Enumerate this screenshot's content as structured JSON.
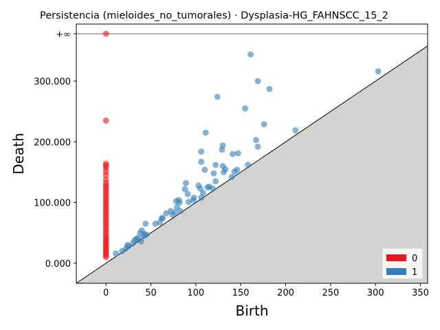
{
  "chart_data": {
    "type": "scatter",
    "title": "Persistencia (mieloides_no_tumorales) · Dysplasia-HG_FAHNSCC_15_2",
    "xlabel": "Birth",
    "ylabel": "Death",
    "xlim": [
      -33,
      358
    ],
    "ylim": [
      -33,
      394
    ],
    "x_ticks": [
      {
        "value": 0,
        "label": "0"
      },
      {
        "value": 50,
        "label": "50"
      },
      {
        "value": 100,
        "label": "100"
      },
      {
        "value": 150,
        "label": "150"
      },
      {
        "value": 200,
        "label": "200"
      },
      {
        "value": 250,
        "label": "250"
      },
      {
        "value": 300,
        "label": "300"
      },
      {
        "value": 350,
        "label": "350"
      }
    ],
    "y_ticks": [
      {
        "value": 0,
        "label": "0.000"
      },
      {
        "value": 100,
        "label": "100.000"
      },
      {
        "value": 200,
        "label": "200.000"
      },
      {
        "value": 300,
        "label": "300.000"
      }
    ],
    "infinity_line": {
      "value": 378,
      "label": "+∞"
    },
    "diagonal": true,
    "grid": false,
    "legend_position": "lower-right",
    "series": [
      {
        "name": "0",
        "color": "#e41a1c",
        "points": [
          [
            0,
            378
          ],
          [
            0,
            235
          ],
          [
            0,
            164
          ],
          [
            0,
            161
          ],
          [
            0,
            157
          ],
          [
            0,
            151
          ],
          [
            0,
            145
          ],
          [
            0,
            138
          ],
          [
            0,
            132
          ],
          [
            0,
            128
          ],
          [
            0,
            124
          ],
          [
            0,
            120
          ],
          [
            0,
            116
          ],
          [
            0,
            112
          ],
          [
            0,
            108
          ],
          [
            0,
            104
          ],
          [
            0,
            100
          ],
          [
            0,
            96
          ],
          [
            0,
            92
          ],
          [
            0,
            88
          ],
          [
            0,
            84
          ],
          [
            0,
            80
          ],
          [
            0,
            76
          ],
          [
            0,
            72
          ],
          [
            0,
            68
          ],
          [
            0,
            64
          ],
          [
            0,
            60
          ],
          [
            0,
            56
          ],
          [
            0,
            52
          ],
          [
            0,
            48
          ],
          [
            0,
            44
          ],
          [
            0,
            40
          ],
          [
            0,
            37
          ],
          [
            0,
            34
          ],
          [
            0,
            31
          ],
          [
            0,
            28
          ],
          [
            0,
            25
          ],
          [
            0,
            22
          ],
          [
            0,
            19
          ],
          [
            0,
            16
          ],
          [
            0,
            13
          ],
          [
            0,
            10
          ]
        ]
      },
      {
        "name": "1",
        "color": "#377eb8",
        "points": [
          [
            11,
            16
          ],
          [
            18,
            20
          ],
          [
            22,
            24
          ],
          [
            24,
            30
          ],
          [
            25,
            28
          ],
          [
            30,
            33
          ],
          [
            32,
            38
          ],
          [
            34,
            40
          ],
          [
            36,
            42
          ],
          [
            38,
            50
          ],
          [
            39,
            36
          ],
          [
            40,
            54
          ],
          [
            42,
            45
          ],
          [
            43,
            48
          ],
          [
            44,
            65
          ],
          [
            45,
            47
          ],
          [
            55,
            65
          ],
          [
            60,
            67
          ],
          [
            62,
            74
          ],
          [
            63,
            74
          ],
          [
            67,
            82
          ],
          [
            72,
            86
          ],
          [
            74,
            80
          ],
          [
            77,
            84
          ],
          [
            78,
            102
          ],
          [
            79,
            92
          ],
          [
            81,
            104
          ],
          [
            82,
            100
          ],
          [
            83,
            86
          ],
          [
            88,
            122
          ],
          [
            89,
            132
          ],
          [
            91,
            114
          ],
          [
            92,
            101
          ],
          [
            97,
            104
          ],
          [
            98,
            108
          ],
          [
            103,
            128
          ],
          [
            105,
            123
          ],
          [
            106,
            108
          ],
          [
            106,
            167
          ],
          [
            106,
            184
          ],
          [
            108,
            116
          ],
          [
            110,
            154
          ],
          [
            111,
            215
          ],
          [
            113,
            125
          ],
          [
            115,
            126
          ],
          [
            119,
            123
          ],
          [
            120,
            148
          ],
          [
            122,
            135
          ],
          [
            122,
            162
          ],
          [
            124,
            274
          ],
          [
            129,
            187
          ],
          [
            130,
            160
          ],
          [
            130,
            194
          ],
          [
            131,
            150
          ],
          [
            133,
            155
          ],
          [
            140,
            142
          ],
          [
            141,
            180
          ],
          [
            143,
            151
          ],
          [
            146,
            154
          ],
          [
            147,
            181
          ],
          [
            155,
            255
          ],
          [
            158,
            162
          ],
          [
            161,
            344
          ],
          [
            167,
            203
          ],
          [
            169,
            300
          ],
          [
            169,
            192
          ],
          [
            176,
            229
          ],
          [
            182,
            287
          ],
          [
            211,
            219
          ],
          [
            303,
            316
          ]
        ]
      }
    ]
  }
}
